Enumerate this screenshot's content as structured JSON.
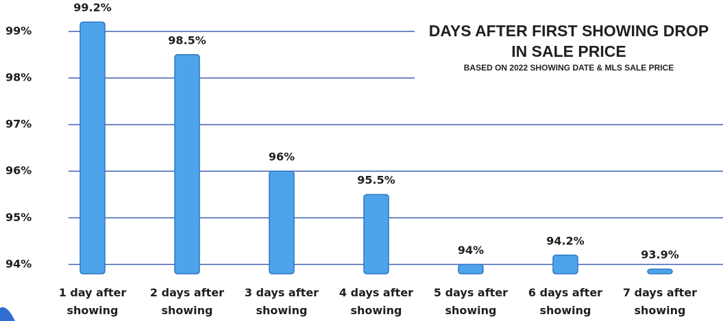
{
  "chart_data": {
    "type": "bar",
    "title": "DAYS AFTER FIRST SHOWING DROP IN SALE PRICE",
    "subtitle": "BASED ON 2022 SHOWING DATE & MLS SALE PRICE",
    "categories": [
      "1 day after showing",
      "2 days after showing",
      "3 days after showing",
      "4 days after showing",
      "5 days after showing",
      "6 days after showing",
      "7 days after showing"
    ],
    "values": [
      99.2,
      98.5,
      96,
      95.5,
      94,
      94.2,
      93.9
    ],
    "value_labels": [
      "99.2%",
      "98.5%",
      "96%",
      "95.5%",
      "94%",
      "94.2%",
      "93.9%"
    ],
    "color": "#4ea4ea",
    "ylim": [
      93.8,
      99.6
    ],
    "yticks": [
      {
        "value": 94,
        "label": "94%"
      },
      {
        "value": 95,
        "label": "95%"
      },
      {
        "value": 96,
        "label": "96%"
      },
      {
        "value": 97,
        "label": "97%"
      },
      {
        "value": 98,
        "label": "98%"
      },
      {
        "value": 99,
        "label": "99%"
      }
    ],
    "grid": true
  }
}
